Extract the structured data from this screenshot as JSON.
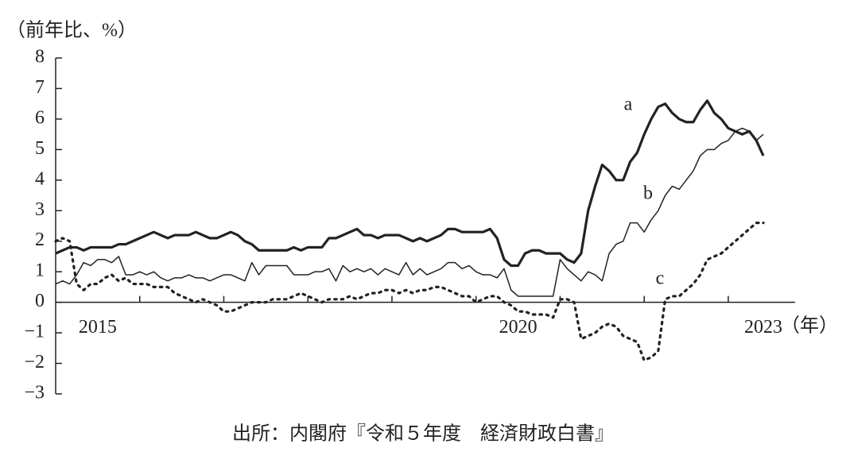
{
  "chart_data": {
    "type": "line",
    "y_label": "（前年比、%）",
    "x_label": "（年）",
    "source": "出所：内閣府『令和５年度　経済財政白書』",
    "categories": [
      null,
      null,
      null,
      null,
      null,
      null,
      "2015",
      null,
      null,
      null,
      null,
      null,
      null,
      null,
      null,
      null,
      null,
      null,
      null,
      null,
      null,
      null,
      null,
      null,
      null,
      null,
      null,
      null,
      null,
      null,
      null,
      null,
      null,
      null,
      null,
      null,
      null,
      null,
      null,
      null,
      null,
      null,
      null,
      null,
      null,
      null,
      null,
      null,
      null,
      null,
      null,
      null,
      null,
      null,
      null,
      null,
      null,
      null,
      null,
      null,
      null,
      null,
      null,
      null,
      null,
      null,
      "2020",
      null,
      null,
      null,
      null,
      null,
      null,
      null,
      null,
      null,
      null,
      null,
      null,
      null,
      null,
      null,
      null,
      null,
      null,
      null,
      null,
      null,
      null,
      null,
      null,
      null,
      null,
      null,
      null,
      null,
      null,
      null,
      null,
      null,
      null,
      "2023"
    ],
    "ylim": [
      -3,
      8
    ],
    "yticks": [
      {
        "value": -3,
        "label": "−3"
      },
      {
        "value": -2,
        "label": "−2"
      },
      {
        "value": -1,
        "label": "−1"
      },
      0,
      1,
      2,
      3,
      4,
      5,
      6,
      7,
      8
    ],
    "series": [
      {
        "name": "a",
        "color": "#222222",
        "style": "thick",
        "values": [
          1.6,
          1.7,
          1.8,
          1.8,
          1.7,
          1.8,
          1.8,
          1.8,
          1.8,
          1.9,
          1.9,
          2.0,
          2.1,
          2.2,
          2.3,
          2.2,
          2.1,
          2.2,
          2.2,
          2.2,
          2.3,
          2.2,
          2.1,
          2.1,
          2.2,
          2.3,
          2.2,
          2.0,
          1.9,
          1.7,
          1.7,
          1.7,
          1.7,
          1.7,
          1.8,
          1.7,
          1.8,
          1.8,
          1.8,
          2.1,
          2.1,
          2.2,
          2.3,
          2.4,
          2.2,
          2.2,
          2.1,
          2.2,
          2.2,
          2.2,
          2.1,
          2.0,
          2.1,
          2.0,
          2.1,
          2.2,
          2.4,
          2.4,
          2.3,
          2.3,
          2.3,
          2.3,
          2.4,
          2.1,
          1.4,
          1.2,
          1.2,
          1.6,
          1.7,
          1.7,
          1.6,
          1.6,
          1.6,
          1.4,
          1.3,
          1.6,
          3.0,
          3.8,
          4.5,
          4.3,
          4.0,
          4.0,
          4.6,
          4.9,
          5.5,
          6.0,
          6.4,
          6.5,
          6.2,
          6.0,
          5.9,
          5.9,
          6.3,
          6.6,
          6.2,
          6.0,
          5.7,
          5.6,
          5.5,
          5.6,
          5.3,
          4.8
        ]
      },
      {
        "name": "b",
        "color": "#222222",
        "style": "thin",
        "values": [
          0.6,
          0.7,
          0.6,
          0.9,
          1.3,
          1.2,
          1.4,
          1.4,
          1.3,
          1.5,
          0.9,
          0.9,
          1.0,
          0.9,
          1.0,
          0.8,
          0.7,
          0.8,
          0.8,
          0.9,
          0.8,
          0.8,
          0.7,
          0.8,
          0.9,
          0.9,
          0.8,
          0.7,
          1.3,
          0.9,
          1.2,
          1.2,
          1.2,
          1.2,
          0.9,
          0.9,
          0.9,
          1.0,
          1.0,
          1.1,
          0.7,
          1.2,
          1.0,
          1.1,
          1.0,
          1.1,
          0.9,
          1.1,
          1.0,
          0.9,
          1.3,
          0.9,
          1.1,
          0.9,
          1.0,
          1.1,
          1.3,
          1.3,
          1.1,
          1.2,
          1.0,
          0.9,
          0.9,
          0.8,
          1.1,
          0.4,
          0.2,
          0.2,
          0.2,
          0.2,
          0.2,
          0.2,
          1.4,
          1.1,
          0.9,
          0.7,
          1.0,
          0.9,
          0.7,
          1.6,
          1.9,
          2.0,
          2.6,
          2.6,
          2.3,
          2.7,
          3.0,
          3.5,
          3.8,
          3.7,
          4.0,
          4.3,
          4.8,
          5.0,
          5.0,
          5.2,
          5.3,
          5.6,
          5.7,
          5.6,
          5.3,
          5.5
        ]
      },
      {
        "name": "c",
        "color": "#222222",
        "style": "dotted",
        "values": [
          2.0,
          2.1,
          2.0,
          0.6,
          0.4,
          0.6,
          0.6,
          0.8,
          0.9,
          0.7,
          0.8,
          0.6,
          0.6,
          0.6,
          0.5,
          0.5,
          0.5,
          0.3,
          0.2,
          0.1,
          0.0,
          0.1,
          0.0,
          -0.1,
          -0.3,
          -0.3,
          -0.2,
          -0.1,
          0.0,
          0.0,
          0.0,
          0.1,
          0.1,
          0.1,
          0.2,
          0.3,
          0.2,
          0.1,
          0.0,
          0.1,
          0.1,
          0.1,
          0.2,
          0.1,
          0.2,
          0.3,
          0.3,
          0.4,
          0.4,
          0.3,
          0.4,
          0.3,
          0.4,
          0.4,
          0.5,
          0.5,
          0.4,
          0.3,
          0.2,
          0.2,
          0.0,
          0.1,
          0.2,
          0.2,
          0.0,
          -0.1,
          -0.3,
          -0.3,
          -0.4,
          -0.4,
          -0.4,
          -0.5,
          0.1,
          0.1,
          0.0,
          -1.2,
          -1.1,
          -1.0,
          -0.8,
          -0.7,
          -0.8,
          -1.1,
          -1.2,
          -1.3,
          -1.9,
          -1.8,
          -1.6,
          0.1,
          0.2,
          0.2,
          0.4,
          0.6,
          0.9,
          1.4,
          1.5,
          1.6,
          1.8,
          2.0,
          2.2,
          2.4,
          2.6,
          2.6
        ]
      }
    ]
  }
}
